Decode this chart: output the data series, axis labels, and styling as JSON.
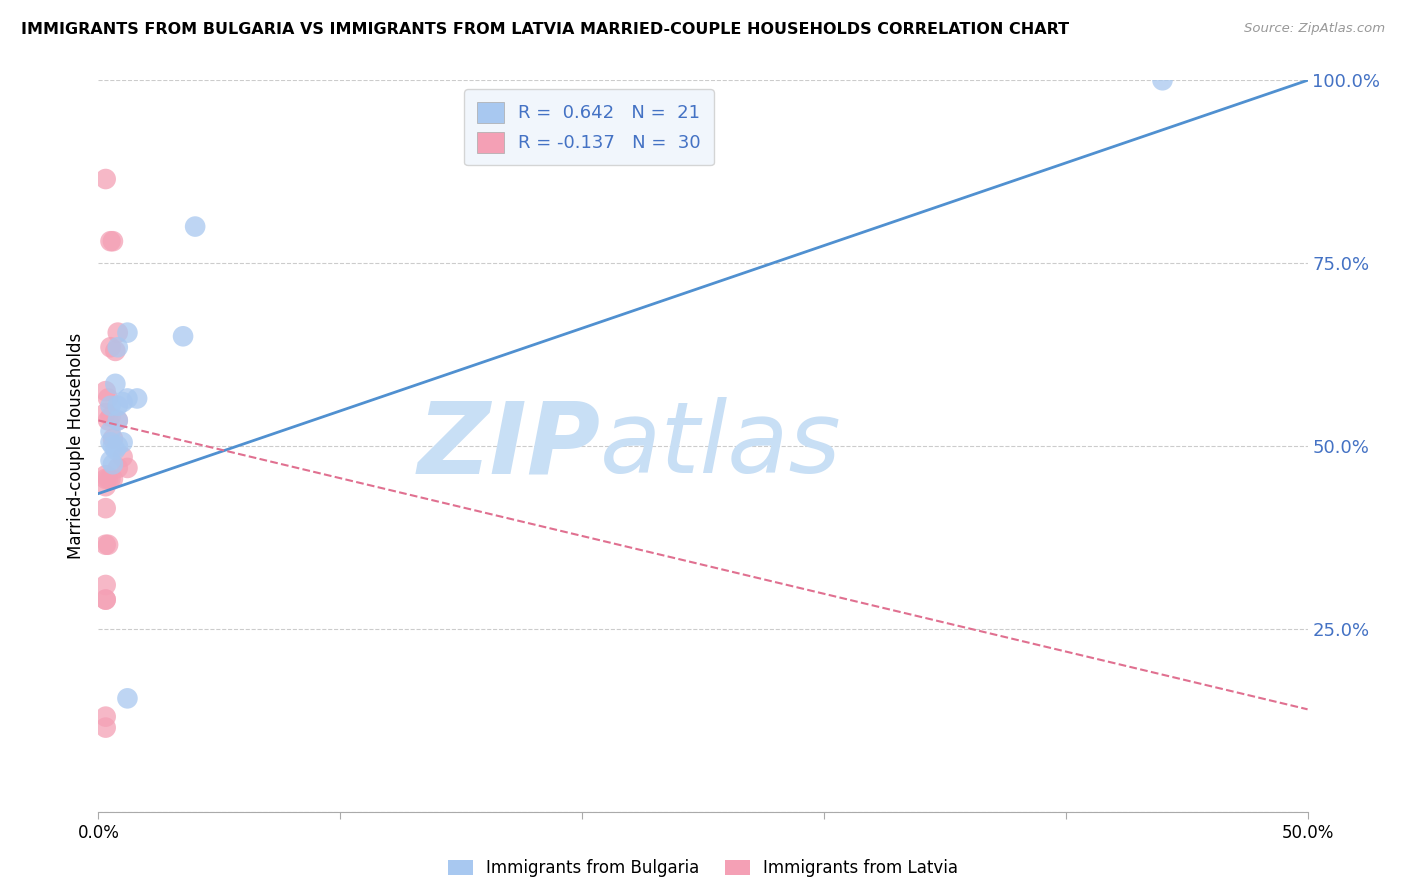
{
  "title": "IMMIGRANTS FROM BULGARIA VS IMMIGRANTS FROM LATVIA MARRIED-COUPLE HOUSEHOLDS CORRELATION CHART",
  "source": "Source: ZipAtlas.com",
  "ylabel": "Married-couple Households",
  "x_min": 0.0,
  "x_max": 0.5,
  "y_min": 0.0,
  "y_max": 1.0,
  "bulgaria_R": 0.642,
  "bulgaria_N": 21,
  "latvia_R": -0.137,
  "latvia_N": 30,
  "bulgaria_color": "#A8C8F0",
  "latvia_color": "#F4A0B5",
  "bulgaria_line_color": "#5090D0",
  "latvia_line_color": "#E07090",
  "bulgaria_line_x0": 0.0,
  "bulgaria_line_y0": 0.435,
  "bulgaria_line_x1": 0.5,
  "bulgaria_line_y1": 1.0,
  "latvia_line_x0": 0.0,
  "latvia_line_y0": 0.535,
  "latvia_line_x1": 0.5,
  "latvia_line_y1": 0.14,
  "watermark_zip": "ZIP",
  "watermark_atlas": "atlas",
  "watermark_color": "#C8DFF5",
  "legend_box_color": "#EEF4FC",
  "bulgaria_scatter_x": [
    0.008,
    0.012,
    0.04,
    0.005,
    0.008,
    0.012,
    0.005,
    0.008,
    0.005,
    0.01,
    0.005,
    0.007,
    0.01,
    0.016,
    0.035,
    0.44,
    0.007,
    0.008,
    0.006,
    0.006,
    0.012
  ],
  "bulgaria_scatter_y": [
    0.635,
    0.655,
    0.8,
    0.555,
    0.535,
    0.565,
    0.52,
    0.555,
    0.505,
    0.505,
    0.48,
    0.585,
    0.56,
    0.565,
    0.65,
    1.0,
    0.495,
    0.5,
    0.475,
    0.5,
    0.155
  ],
  "latvia_scatter_x": [
    0.003,
    0.005,
    0.006,
    0.007,
    0.008,
    0.003,
    0.004,
    0.005,
    0.003,
    0.004,
    0.005,
    0.006,
    0.008,
    0.003,
    0.004,
    0.005,
    0.006,
    0.01,
    0.003,
    0.003,
    0.003,
    0.008,
    0.012,
    0.003,
    0.004,
    0.003,
    0.003,
    0.003,
    0.003,
    0.003
  ],
  "latvia_scatter_y": [
    0.865,
    0.78,
    0.78,
    0.63,
    0.655,
    0.575,
    0.565,
    0.635,
    0.545,
    0.535,
    0.54,
    0.51,
    0.535,
    0.46,
    0.455,
    0.455,
    0.455,
    0.485,
    0.415,
    0.445,
    0.455,
    0.47,
    0.47,
    0.365,
    0.365,
    0.29,
    0.29,
    0.31,
    0.115,
    0.13
  ],
  "x_ticks": [
    0.0,
    0.1,
    0.2,
    0.3,
    0.4,
    0.5
  ],
  "x_tick_labels": [
    "0.0%",
    "",
    "",
    "",
    "",
    "50.0%"
  ],
  "y_ticks": [
    0.0,
    0.25,
    0.5,
    0.75,
    1.0
  ],
  "y_tick_labels_right": [
    "",
    "25.0%",
    "50.0%",
    "75.0%",
    "100.0%"
  ]
}
